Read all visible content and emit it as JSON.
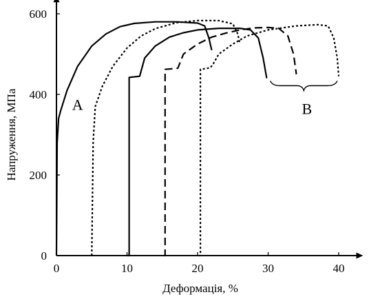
{
  "chart_data": {
    "type": "line",
    "title": "",
    "xlabel": "Деформація, %",
    "ylabel": "Напруження, МПа",
    "xlim": [
      0,
      42
    ],
    "ylim": [
      0,
      620
    ],
    "x_ticks": [
      0,
      10,
      20,
      30,
      40
    ],
    "y_ticks": [
      0,
      200,
      400,
      600
    ],
    "x_tick_labels": [
      "0",
      "10",
      "20",
      "30",
      "40"
    ],
    "y_tick_labels": [
      "0",
      "200",
      "400",
      "600"
    ],
    "grid": false,
    "legend": "none",
    "group_labels": [
      {
        "text": "A",
        "x": 3.0,
        "y": 375
      },
      {
        "text": "B",
        "x": 35.5,
        "y": 365
      }
    ],
    "series": [
      {
        "style": "solid",
        "points": [
          [
            0,
            0
          ],
          [
            0.1,
            280
          ],
          [
            0.3,
            340
          ],
          [
            0.6,
            360
          ],
          [
            1.5,
            410
          ],
          [
            3,
            470
          ],
          [
            5,
            520
          ],
          [
            7,
            550
          ],
          [
            9,
            568
          ],
          [
            11,
            576
          ],
          [
            14,
            580
          ],
          [
            17,
            580
          ],
          [
            20,
            577
          ],
          [
            21,
            570
          ],
          [
            21.6,
            540
          ],
          [
            22,
            510
          ]
        ]
      },
      {
        "style": "dotted",
        "points": [
          [
            5,
            0
          ],
          [
            5.2,
            280
          ],
          [
            5.5,
            370
          ],
          [
            6.5,
            420
          ],
          [
            8,
            470
          ],
          [
            10,
            515
          ],
          [
            12,
            545
          ],
          [
            14,
            563
          ],
          [
            17,
            578
          ],
          [
            20,
            583
          ],
          [
            23,
            583
          ],
          [
            25,
            575
          ],
          [
            25.7,
            550
          ],
          [
            26,
            525
          ]
        ]
      },
      {
        "style": "solid",
        "points": [
          [
            10,
            0
          ],
          [
            10.3,
            0
          ],
          [
            10.3,
            442
          ],
          [
            11.8,
            445
          ],
          [
            12.5,
            490
          ],
          [
            14,
            520
          ],
          [
            16,
            542
          ],
          [
            18,
            553
          ],
          [
            20,
            560
          ],
          [
            23,
            564
          ],
          [
            26,
            564
          ],
          [
            27.5,
            560
          ],
          [
            28.6,
            540
          ],
          [
            29.3,
            490
          ],
          [
            29.8,
            440
          ]
        ]
      },
      {
        "style": "dashed",
        "points": [
          [
            15.2,
            0
          ],
          [
            15.4,
            0
          ],
          [
            15.4,
            462
          ],
          [
            17.2,
            465
          ],
          [
            18,
            500
          ],
          [
            20,
            525
          ],
          [
            22,
            542
          ],
          [
            24,
            552
          ],
          [
            26,
            560
          ],
          [
            28,
            565
          ],
          [
            30,
            566
          ],
          [
            31.5,
            564
          ],
          [
            32.8,
            545
          ],
          [
            33.6,
            500
          ],
          [
            34,
            450
          ]
        ]
      },
      {
        "style": "dotted",
        "points": [
          [
            20.2,
            0
          ],
          [
            20.4,
            0
          ],
          [
            20.4,
            462
          ],
          [
            21.8,
            466
          ],
          [
            22.2,
            475
          ],
          [
            23,
            500
          ],
          [
            25,
            525
          ],
          [
            27,
            545
          ],
          [
            30,
            560
          ],
          [
            34,
            570
          ],
          [
            37,
            573
          ],
          [
            38.5,
            570
          ],
          [
            39.3,
            540
          ],
          [
            39.8,
            490
          ],
          [
            40,
            445
          ]
        ]
      }
    ]
  }
}
